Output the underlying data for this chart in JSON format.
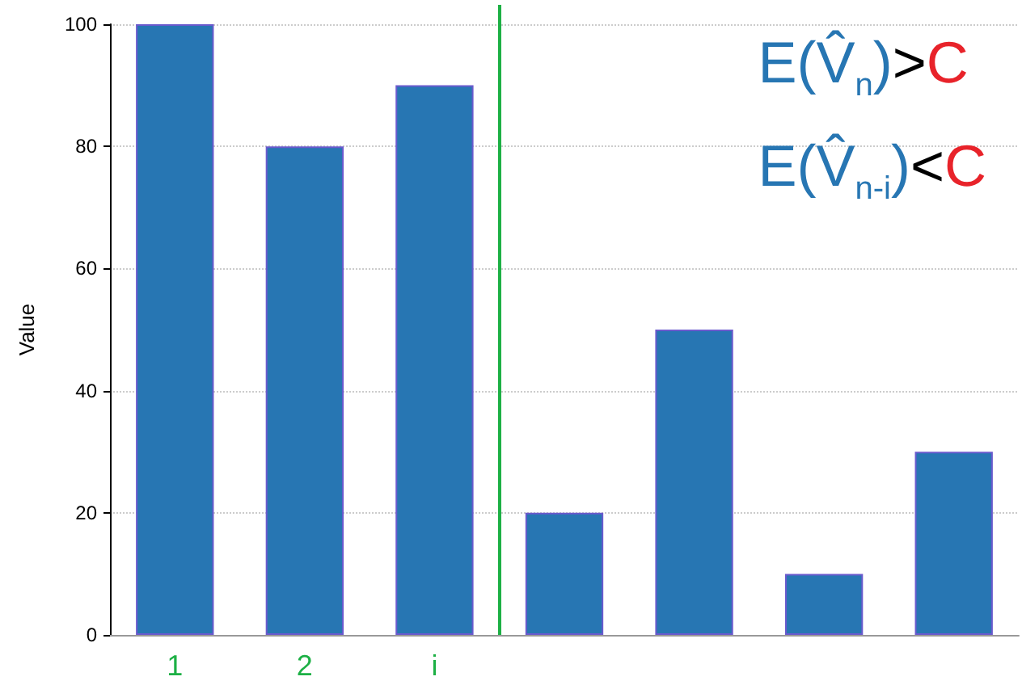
{
  "chart_data": {
    "type": "bar",
    "ylabel": "Value",
    "categories": [
      "1",
      "2",
      "i",
      null,
      null,
      null,
      null
    ],
    "values": [
      100,
      80,
      90,
      20,
      50,
      10,
      30
    ],
    "color": "#2776b3",
    "ylim": [
      0,
      100
    ],
    "yticks": [
      0,
      20,
      40,
      60,
      80,
      100
    ],
    "grid": "y",
    "annotations": [
      "E(V̂$_{n}$)>C",
      "E(V̂$_{n-i}$)<C"
    ]
  }
}
